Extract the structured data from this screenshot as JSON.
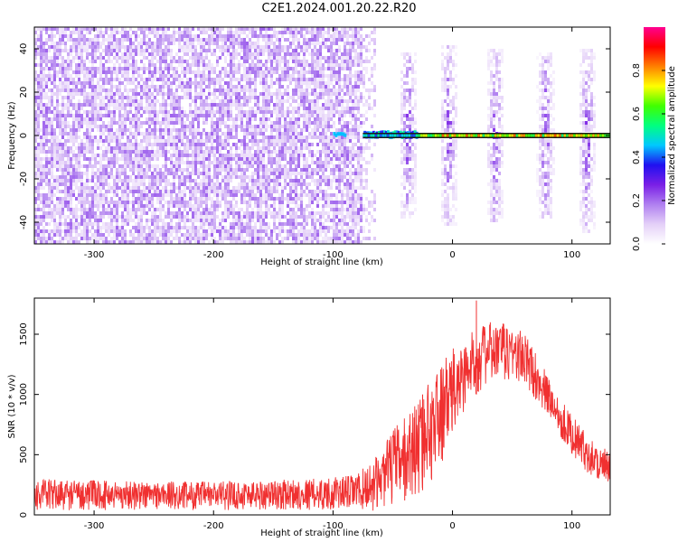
{
  "title": "C2E1.2024.001.20.22.R20",
  "chart_data": [
    {
      "type": "heatmap",
      "xlabel": "Height of straight line (km)",
      "ylabel": "Frequency (Hz)",
      "xlim": [
        -350,
        132
      ],
      "ylim": [
        -50,
        50
      ],
      "xticks": [
        -300,
        -200,
        -100,
        0,
        100
      ],
      "yticks": [
        -40,
        -20,
        0,
        20,
        40
      ],
      "colorbar": {
        "label": "Normalized spectral amplitude",
        "range": [
          0,
          1
        ],
        "ticks": [
          0.0,
          0.2,
          0.4,
          0.6,
          0.8
        ],
        "colors": [
          "#ffffff",
          "#e4d0f8",
          "#b080f0",
          "#7a1fe6",
          "#2010f0",
          "#00c8ff",
          "#00ff80",
          "#40ff00",
          "#ffff00",
          "#ff8000",
          "#ff0000",
          "#ff0090"
        ]
      },
      "noise_region": {
        "x": [
          -350,
          -75
        ],
        "amplitude": 0.15
      },
      "carrier": {
        "frequency": 0,
        "x": [
          -100,
          132
        ],
        "peak_amplitude": 0.8
      },
      "bursts": [
        {
          "center": -37,
          "freq_extent": [
            -38,
            38
          ]
        },
        {
          "center": -3,
          "freq_extent": [
            -42,
            42
          ]
        },
        {
          "center": 36,
          "freq_extent": [
            -40,
            40
          ]
        },
        {
          "center": 78,
          "freq_extent": [
            -38,
            38
          ]
        },
        {
          "center": 113,
          "freq_extent": [
            -45,
            40
          ]
        }
      ]
    },
    {
      "type": "line",
      "xlabel": "Height of straight line (km)",
      "ylabel": "SNR (10 * v/v)",
      "xlim": [
        -350,
        132
      ],
      "ylim": [
        0,
        1800
      ],
      "xticks": [
        -300,
        -200,
        -100,
        0,
        100
      ],
      "yticks": [
        0,
        500,
        1000,
        1500
      ],
      "color": "#f03030",
      "envelope": [
        {
          "x": -350,
          "low": 30,
          "high": 300
        },
        {
          "x": -300,
          "low": 40,
          "high": 290
        },
        {
          "x": -250,
          "low": 40,
          "high": 280
        },
        {
          "x": -200,
          "low": 40,
          "high": 280
        },
        {
          "x": -150,
          "low": 40,
          "high": 290
        },
        {
          "x": -100,
          "low": 40,
          "high": 310
        },
        {
          "x": -80,
          "low": 40,
          "high": 340
        },
        {
          "x": -70,
          "low": 20,
          "high": 430
        },
        {
          "x": -60,
          "low": 60,
          "high": 520
        },
        {
          "x": -50,
          "low": 80,
          "high": 720
        },
        {
          "x": -40,
          "low": 120,
          "high": 820
        },
        {
          "x": -30,
          "low": 160,
          "high": 950
        },
        {
          "x": -20,
          "low": 250,
          "high": 1100
        },
        {
          "x": -10,
          "low": 400,
          "high": 1250
        },
        {
          "x": 0,
          "low": 600,
          "high": 1380
        },
        {
          "x": 10,
          "low": 850,
          "high": 1450
        },
        {
          "x": 20,
          "low": 1000,
          "high": 1560
        },
        {
          "x": 30,
          "low": 1080,
          "high": 1600
        },
        {
          "x": 40,
          "low": 1100,
          "high": 1600
        },
        {
          "x": 50,
          "low": 1100,
          "high": 1590
        },
        {
          "x": 60,
          "low": 1050,
          "high": 1520
        },
        {
          "x": 70,
          "low": 950,
          "high": 1350
        },
        {
          "x": 80,
          "low": 800,
          "high": 1150
        },
        {
          "x": 90,
          "low": 650,
          "high": 980
        },
        {
          "x": 100,
          "low": 500,
          "high": 830
        },
        {
          "x": 110,
          "low": 380,
          "high": 700
        },
        {
          "x": 120,
          "low": 290,
          "high": 600
        },
        {
          "x": 132,
          "low": 200,
          "high": 520
        }
      ],
      "spikes": [
        {
          "x": 20,
          "y": 1780
        },
        {
          "x": -40,
          "y": 650
        },
        {
          "x": -25,
          "y": 1000
        }
      ]
    }
  ]
}
